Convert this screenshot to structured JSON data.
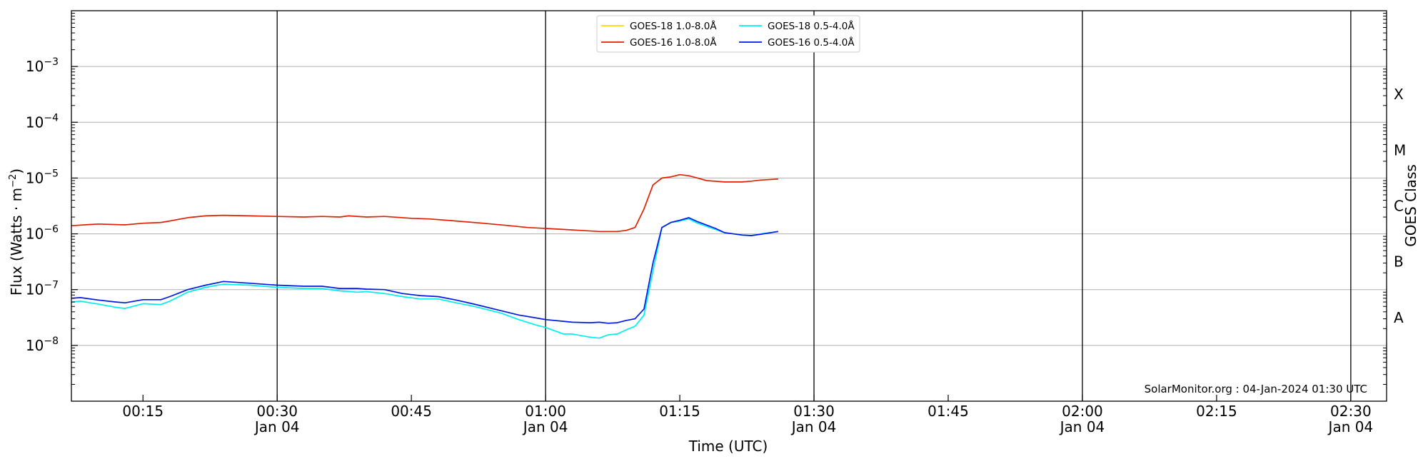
{
  "chart_data": {
    "type": "line",
    "ylabel_main": "Flux (Watts · m",
    "ylabel_sup": "−2",
    "ylabel_close": ")",
    "xlabel": "Time (UTC)",
    "right_label": "GOES Class",
    "watermark": "SolarMonitor.org : 04-Jan-2024 01:30 UTC",
    "y_scale": "log",
    "ylim": [
      1e-09,
      0.01
    ],
    "xlim": [
      "00:07",
      "02:34"
    ],
    "grid": "horizontal at each decade; vertical at each half hour",
    "legend_position": "top-center",
    "y_ticks": [
      {
        "value": 1e-08,
        "base": "10",
        "exp": "−8"
      },
      {
        "value": 1e-07,
        "base": "10",
        "exp": "−7"
      },
      {
        "value": 1e-06,
        "base": "10",
        "exp": "−6"
      },
      {
        "value": 1e-05,
        "base": "10",
        "exp": "−5"
      },
      {
        "value": 0.0001,
        "base": "10",
        "exp": "−4"
      },
      {
        "value": 0.001,
        "base": "10",
        "exp": "−3"
      }
    ],
    "class_labels": [
      {
        "label": "A",
        "value": 3.16e-08
      },
      {
        "label": "B",
        "value": 3.16e-07
      },
      {
        "label": "C",
        "value": 3.16e-06
      },
      {
        "label": "M",
        "value": 3.16e-05
      },
      {
        "label": "X",
        "value": 0.000316
      }
    ],
    "x_ticks": [
      {
        "time": "00:15",
        "time_label": "00:15",
        "date_label": ""
      },
      {
        "time": "00:30",
        "time_label": "00:30",
        "date_label": "Jan 04"
      },
      {
        "time": "00:45",
        "time_label": "00:45",
        "date_label": ""
      },
      {
        "time": "01:00",
        "time_label": "01:00",
        "date_label": "Jan 04"
      },
      {
        "time": "01:15",
        "time_label": "01:15",
        "date_label": ""
      },
      {
        "time": "01:30",
        "time_label": "01:30",
        "date_label": "Jan 04"
      },
      {
        "time": "01:45",
        "time_label": "01:45",
        "date_label": ""
      },
      {
        "time": "02:00",
        "time_label": "02:00",
        "date_label": "Jan 04"
      },
      {
        "time": "02:15",
        "time_label": "02:15",
        "date_label": ""
      },
      {
        "time": "02:30",
        "time_label": "02:30",
        "date_label": "Jan 04"
      }
    ],
    "series": [
      {
        "name": "GOES-18 1.0-8.0Å",
        "color": "#ffd700",
        "x": [],
        "values": []
      },
      {
        "name": "GOES-16 1.0-8.0Å",
        "color": "#e02000",
        "x": [
          "00:07",
          "00:10",
          "00:13",
          "00:15",
          "00:17",
          "00:18",
          "00:20",
          "00:22",
          "00:24",
          "00:27",
          "00:30",
          "00:33",
          "00:35",
          "00:37",
          "00:38",
          "00:40",
          "00:42",
          "00:45",
          "00:47",
          "00:50",
          "00:53",
          "00:56",
          "00:58",
          "01:00",
          "01:02",
          "01:04",
          "01:06",
          "01:08",
          "01:09",
          "01:10",
          "01:11",
          "01:12",
          "01:13",
          "01:14",
          "01:15",
          "01:16",
          "01:17",
          "01:18",
          "01:20",
          "01:22",
          "01:23",
          "01:24",
          "01:26"
        ],
        "values": [
          1.4e-06,
          1.5e-06,
          1.45e-06,
          1.55e-06,
          1.6e-06,
          1.7e-06,
          1.95e-06,
          2.1e-06,
          2.15e-06,
          2.1e-06,
          2.05e-06,
          2e-06,
          2.05e-06,
          2e-06,
          2.1e-06,
          2e-06,
          2.05e-06,
          1.9e-06,
          1.85e-06,
          1.7e-06,
          1.55e-06,
          1.4e-06,
          1.3e-06,
          1.25e-06,
          1.2e-06,
          1.15e-06,
          1.1e-06,
          1.1e-06,
          1.15e-06,
          1.3e-06,
          2.8e-06,
          7.5e-06,
          1e-05,
          1.05e-05,
          1.15e-05,
          1.1e-05,
          1e-05,
          9e-06,
          8.5e-06,
          8.5e-06,
          8.8e-06,
          9.2e-06,
          9.6e-06
        ]
      },
      {
        "name": "GOES-18 0.5-4.0Å",
        "color": "#00eeee",
        "x": [
          "00:07",
          "00:08",
          "00:10",
          "00:12",
          "00:13",
          "00:15",
          "00:17",
          "00:18",
          "00:20",
          "00:22",
          "00:24",
          "00:27",
          "00:30",
          "00:33",
          "00:35",
          "00:37",
          "00:39",
          "00:40",
          "00:42",
          "00:44",
          "00:46",
          "00:48",
          "00:50",
          "00:52",
          "00:55",
          "00:57",
          "00:59",
          "01:00",
          "01:02",
          "01:03",
          "01:05",
          "01:06",
          "01:07",
          "01:08",
          "01:09",
          "01:10",
          "01:11",
          "01:13",
          "01:14",
          "01:15",
          "01:16",
          "01:17",
          "01:19",
          "01:20",
          "01:22",
          "01:23",
          "01:24",
          "01:26"
        ],
        "values": [
          6e-08,
          6.2e-08,
          5.5e-08,
          4.8e-08,
          4.6e-08,
          5.6e-08,
          5.4e-08,
          6.2e-08,
          9e-08,
          1.1e-07,
          1.25e-07,
          1.2e-07,
          1.1e-07,
          1.05e-07,
          1.05e-07,
          9.5e-08,
          9e-08,
          9.2e-08,
          8.5e-08,
          7.5e-08,
          6.8e-08,
          6.8e-08,
          5.8e-08,
          5e-08,
          3.8e-08,
          2.9e-08,
          2.3e-08,
          2.1e-08,
          1.6e-08,
          1.6e-08,
          1.4e-08,
          1.35e-08,
          1.55e-08,
          1.6e-08,
          1.9e-08,
          2.2e-08,
          3.5e-08,
          1.3e-06,
          1.6e-06,
          1.7e-06,
          1.85e-06,
          1.55e-06,
          1.2e-06,
          1.05e-06,
          9.5e-07,
          9.3e-07,
          1e-06,
          1.1e-06
        ]
      },
      {
        "name": "GOES-16 0.5-4.0Å",
        "color": "#0018e8",
        "x": [
          "00:07",
          "00:08",
          "00:10",
          "00:12",
          "00:13",
          "00:15",
          "00:17",
          "00:18",
          "00:20",
          "00:22",
          "00:24",
          "00:27",
          "00:30",
          "00:33",
          "00:35",
          "00:37",
          "00:39",
          "00:40",
          "00:42",
          "00:44",
          "00:46",
          "00:48",
          "00:50",
          "00:52",
          "00:55",
          "00:57",
          "00:59",
          "01:00",
          "01:02",
          "01:03",
          "01:05",
          "01:06",
          "01:07",
          "01:08",
          "01:09",
          "01:10",
          "01:11",
          "01:12",
          "01:13",
          "01:14",
          "01:15",
          "01:16",
          "01:17",
          "01:19",
          "01:20",
          "01:22",
          "01:23",
          "01:24",
          "01:26"
        ],
        "values": [
          7e-08,
          7.2e-08,
          6.5e-08,
          6e-08,
          5.8e-08,
          6.6e-08,
          6.6e-08,
          7.5e-08,
          1e-07,
          1.2e-07,
          1.4e-07,
          1.3e-07,
          1.2e-07,
          1.15e-07,
          1.15e-07,
          1.05e-07,
          1.05e-07,
          1.02e-07,
          1e-07,
          8.5e-08,
          7.8e-08,
          7.5e-08,
          6.5e-08,
          5.5e-08,
          4.2e-08,
          3.5e-08,
          3.1e-08,
          2.9e-08,
          2.7e-08,
          2.6e-08,
          2.55e-08,
          2.6e-08,
          2.5e-08,
          2.55e-08,
          2.8e-08,
          3e-08,
          4.5e-08,
          3e-07,
          1.3e-06,
          1.6e-06,
          1.75e-06,
          1.95e-06,
          1.65e-06,
          1.25e-06,
          1.05e-06,
          9.5e-07,
          9.3e-07,
          9.8e-07,
          1.1e-06
        ]
      }
    ]
  }
}
